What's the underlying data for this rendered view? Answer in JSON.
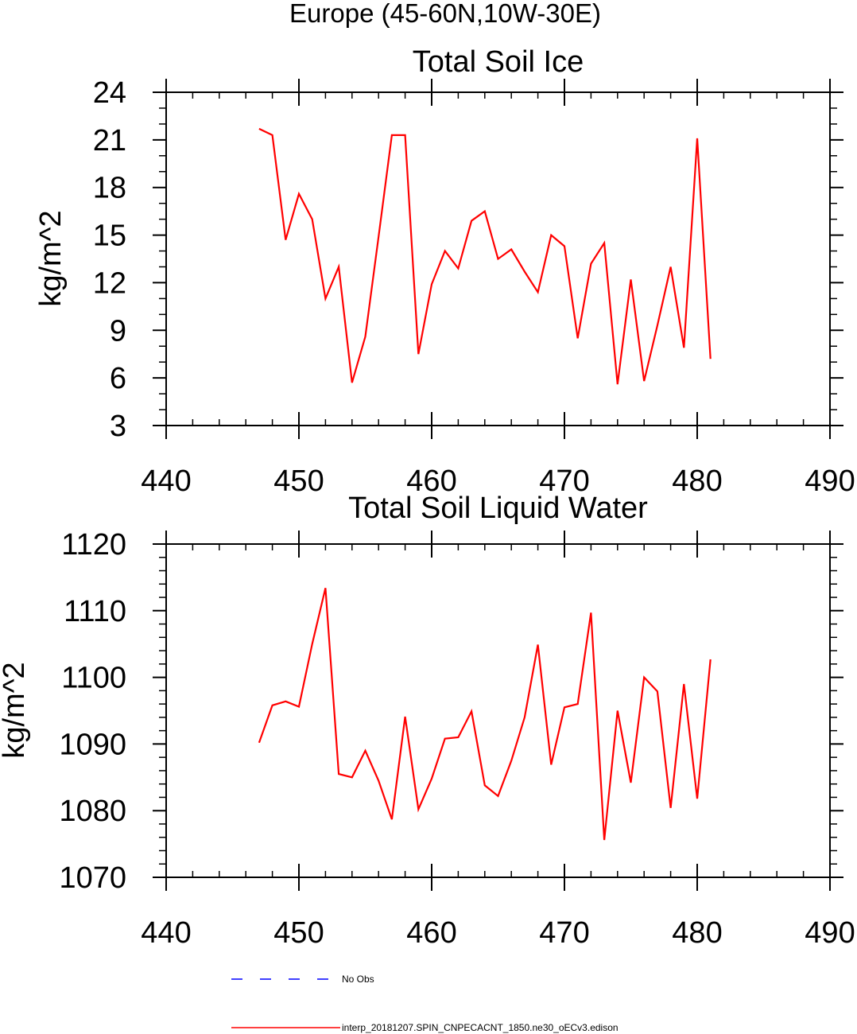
{
  "page": {
    "title": "Europe (45-60N,10W-30E)"
  },
  "chart_data": [
    {
      "type": "line",
      "title": "Total Soil Ice",
      "xlabel": "",
      "ylabel": "kg/m^2",
      "xlim": [
        440,
        490
      ],
      "ylim": [
        3,
        24
      ],
      "x_ticks": [
        440,
        450,
        460,
        470,
        480,
        490
      ],
      "y_ticks": [
        3,
        6,
        9,
        12,
        15,
        18,
        21,
        24
      ],
      "series": [
        {
          "name": "interp_20181207.SPIN_CNPECACNT_1850.ne30_oECv3.edison",
          "color": "#ff0000",
          "x": [
            447,
            448,
            449,
            450,
            451,
            452,
            453,
            454,
            455,
            456,
            457,
            458,
            459,
            460,
            461,
            462,
            463,
            464,
            465,
            466,
            467,
            468,
            469,
            470,
            471,
            472,
            473,
            474,
            475,
            476,
            477,
            478,
            479,
            480,
            481
          ],
          "values": [
            21.7,
            21.3,
            14.7,
            17.6,
            16.0,
            11.0,
            13.0,
            5.7,
            8.6,
            14.9,
            21.3,
            21.3,
            7.5,
            11.9,
            14.0,
            12.9,
            15.9,
            16.5,
            13.5,
            14.1,
            12.7,
            11.4,
            15.0,
            14.3,
            8.5,
            13.2,
            14.5,
            5.6,
            12.2,
            5.8,
            9.3,
            13.0,
            7.9,
            21.1,
            7.2
          ]
        }
      ]
    },
    {
      "type": "line",
      "title": "Total Soil Liquid Water",
      "xlabel": "",
      "ylabel": "kg/m^2",
      "xlim": [
        440,
        490
      ],
      "ylim": [
        1070,
        1120
      ],
      "x_ticks": [
        440,
        450,
        460,
        470,
        480,
        490
      ],
      "y_ticks": [
        1070,
        1080,
        1090,
        1100,
        1110,
        1120
      ],
      "series": [
        {
          "name": "interp_20181207.SPIN_CNPECACNT_1850.ne30_oECv3.edison",
          "color": "#ff0000",
          "x": [
            447,
            448,
            449,
            450,
            451,
            452,
            453,
            454,
            455,
            456,
            457,
            458,
            459,
            460,
            461,
            462,
            463,
            464,
            465,
            466,
            467,
            468,
            469,
            470,
            471,
            472,
            473,
            474,
            475,
            476,
            477,
            478,
            479,
            480,
            481
          ],
          "values": [
            1090.2,
            1095.8,
            1096.4,
            1095.6,
            1105.0,
            1113.4,
            1085.5,
            1085.0,
            1089.0,
            1084.5,
            1078.7,
            1094.1,
            1080.2,
            1084.8,
            1090.8,
            1091.0,
            1094.9,
            1083.8,
            1082.2,
            1087.5,
            1094.0,
            1104.9,
            1086.9,
            1095.5,
            1096.0,
            1109.7,
            1075.6,
            1095.0,
            1084.2,
            1100.0,
            1097.9,
            1080.4,
            1099.0,
            1081.8,
            1102.7
          ]
        }
      ]
    }
  ],
  "legend": [
    {
      "label": "No Obs",
      "color": "#0000ff",
      "style": "dashed"
    },
    {
      "label": "interp_20181207.SPIN_CNPECACNT_1850.ne30_oECv3.edison",
      "color": "#ff0000",
      "style": "solid"
    }
  ]
}
